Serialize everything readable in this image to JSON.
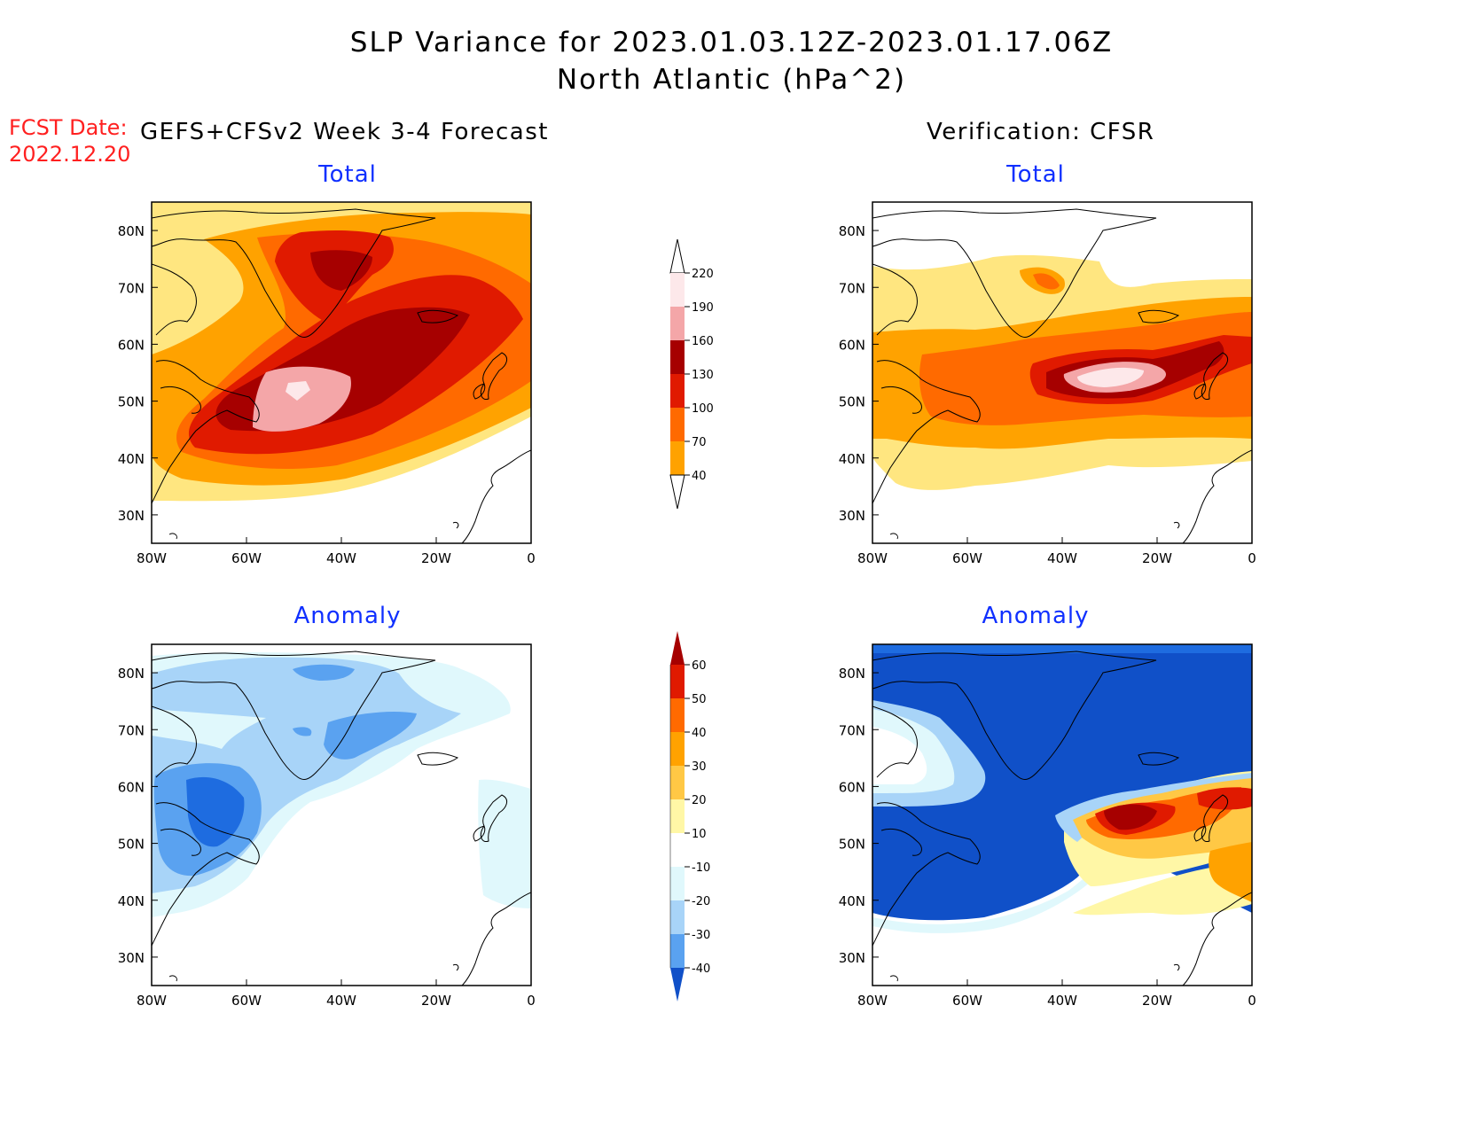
{
  "header": {
    "title_line1": "SLP Variance for 2023.01.03.12Z-2023.01.17.06Z",
    "title_line2": "North Atlantic (hPa^2)",
    "fcst_label": "FCST Date:",
    "fcst_date": "2022.12.20",
    "left_model": "GEFS+CFSv2 Week 3-4 Forecast",
    "right_model": "Verification: CFSR"
  },
  "panels": {
    "top_left_title": "Total",
    "top_right_title": "Total",
    "bottom_left_title": "Anomaly",
    "bottom_right_title": "Anomaly"
  },
  "axes": {
    "lat_labels": [
      "80N",
      "70N",
      "60N",
      "50N",
      "40N",
      "30N"
    ],
    "lon_labels": [
      "80W",
      "60W",
      "40W",
      "20W",
      "0"
    ]
  },
  "colorbars": {
    "total": {
      "levels": [
        "220",
        "190",
        "160",
        "130",
        "100",
        "70",
        "40"
      ],
      "colors": [
        "#fde8ea",
        "#f4a6a8",
        "#a60000",
        "#e01a00",
        "#ff6a00",
        "#ffa200",
        "#ffe680"
      ]
    },
    "anomaly": {
      "levels": [
        "60",
        "50",
        "40",
        "30",
        "20",
        "10",
        "-10",
        "-20",
        "-30",
        "-40"
      ],
      "colors": [
        "#a60000",
        "#e01a00",
        "#ff6a00",
        "#ffa200",
        "#ffc845",
        "#fff7a6",
        "#ffffff",
        "#e0f8fc",
        "#a8d4f8",
        "#5aa2f0",
        "#1e6ce0",
        "#1050c8"
      ]
    }
  }
}
